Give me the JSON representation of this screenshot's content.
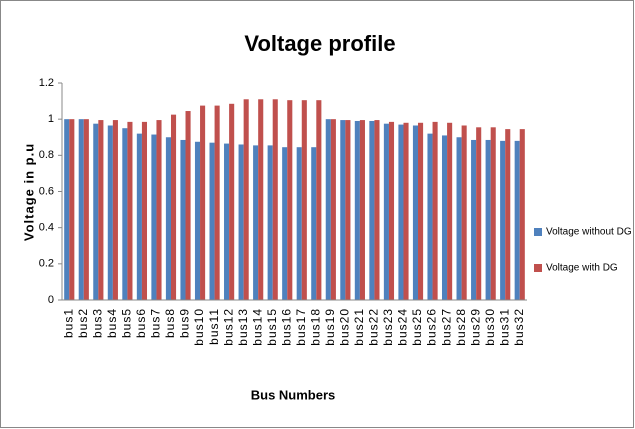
{
  "chart_data": {
    "type": "bar",
    "title": "Voltage profile",
    "x_label": "Bus Numbers",
    "y_label": "Voltage in p.u",
    "categories": [
      "bus1",
      "bus2",
      "bus3",
      "bus4",
      "bus5",
      "bus6",
      "bus7",
      "bus8",
      "bus9",
      "bus10",
      "bus11",
      "bus12",
      "bus13",
      "bus14",
      "bus15",
      "bus16",
      "bus17",
      "bus18",
      "bus19",
      "bus20",
      "bus21",
      "bus22",
      "bus23",
      "bus24",
      "bus25",
      "bus26",
      "bus27",
      "bus28",
      "bus29",
      "bus30",
      "bus31",
      "bus32"
    ],
    "series": [
      {
        "name": "Voltage without DG",
        "color": "#4f81bd",
        "values": [
          1,
          1,
          0.975,
          0.965,
          0.95,
          0.92,
          0.915,
          0.9,
          0.885,
          0.875,
          0.87,
          0.865,
          0.86,
          0.855,
          0.855,
          0.845,
          0.845,
          0.845,
          1,
          0.995,
          0.99,
          0.99,
          0.975,
          0.97,
          0.965,
          0.92,
          0.91,
          0.9,
          0.885,
          0.885,
          0.88,
          0.88
        ]
      },
      {
        "name": "Voltage with DG",
        "color": "#c0504d",
        "values": [
          1,
          1,
          0.995,
          0.995,
          0.985,
          0.985,
          0.995,
          1.025,
          1.045,
          1.075,
          1.075,
          1.085,
          1.11,
          1.11,
          1.11,
          1.105,
          1.105,
          1.105,
          1,
          0.995,
          0.995,
          0.995,
          0.985,
          0.98,
          0.98,
          0.985,
          0.98,
          0.965,
          0.955,
          0.955,
          0.945,
          0.945
        ]
      }
    ],
    "ylim": [
      0,
      1.2
    ],
    "yticks": [
      0,
      0.2,
      0.4,
      0.6,
      0.8,
      {
        "value": 1,
        "label": "1"
      },
      1.2
    ],
    "grid": false,
    "legend": "right"
  }
}
